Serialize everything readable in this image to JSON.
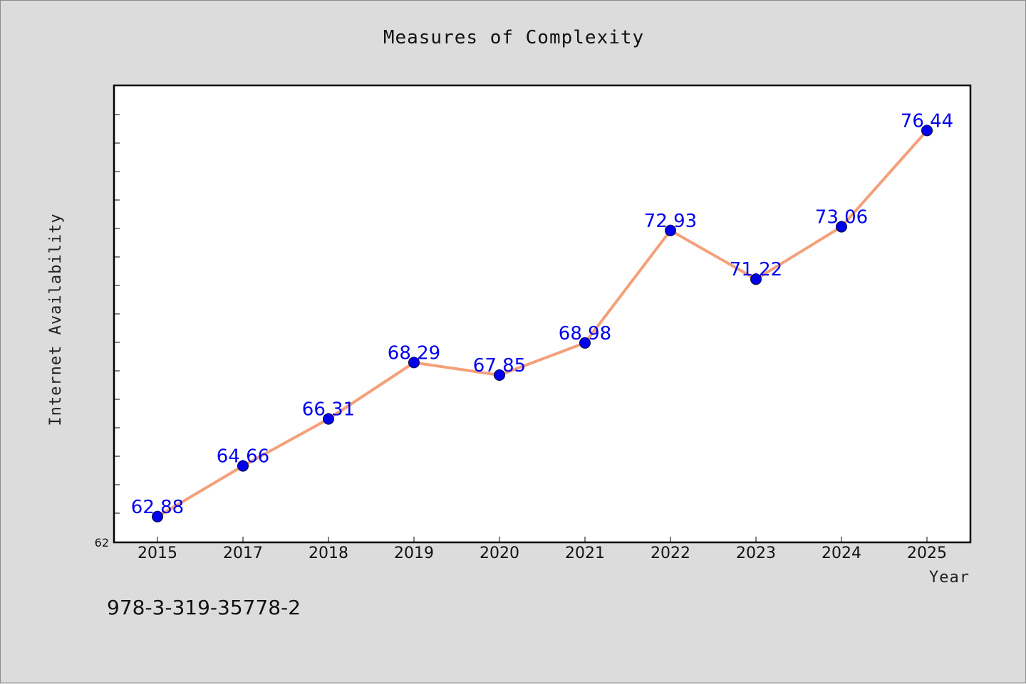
{
  "chart_data": {
    "type": "line",
    "title": "Measures of Complexity",
    "xlabel": "Year",
    "ylabel": "Internet Availability",
    "categories": [
      "2015",
      "2017",
      "2018",
      "2019",
      "2020",
      "2021",
      "2022",
      "2023",
      "2024",
      "2025"
    ],
    "series": [
      {
        "values": [
          62.88,
          64.66,
          66.31,
          68.29,
          67.85,
          68.98,
          72.93,
          71.22,
          73.06,
          76.44
        ],
        "labels": [
          "62.88",
          "64.66",
          "66.31",
          "68.29",
          "67.85",
          "68.98",
          "72.93",
          "71.22",
          "73.06",
          "76.44"
        ],
        "line_color": "#f4a07a",
        "marker_color": "#0000ee"
      }
    ],
    "ylim": [
      62,
      78
    ],
    "ytick_labels": [
      "62"
    ],
    "grid": false,
    "legend": "none"
  },
  "footer": {
    "isbn": "978-3-319-35778-2"
  }
}
